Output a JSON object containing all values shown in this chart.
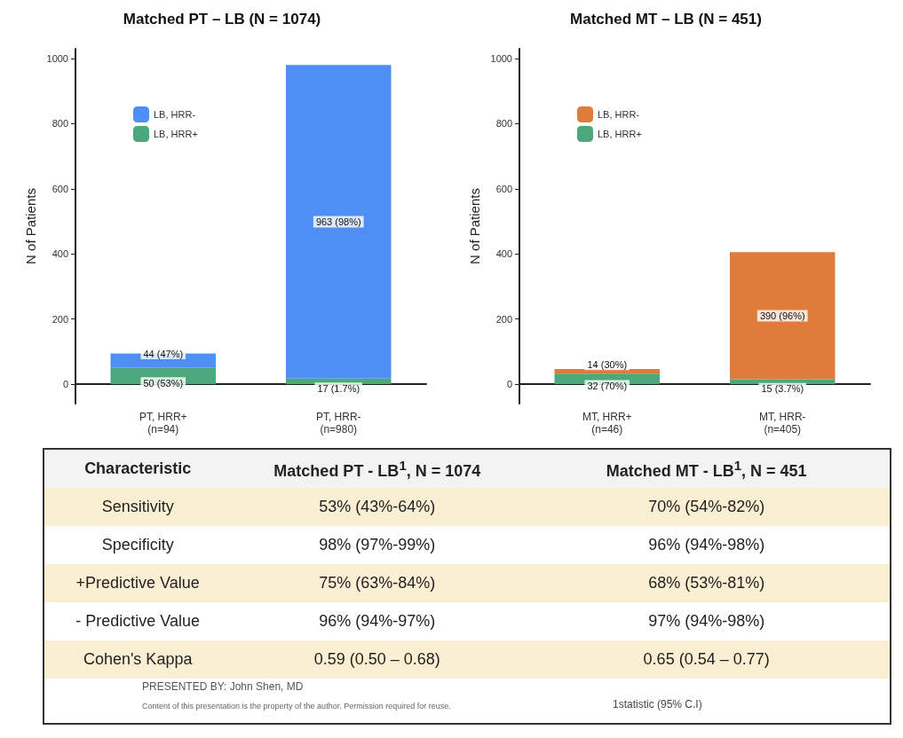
{
  "chart_data": [
    {
      "type": "bar",
      "title": "Matched PT – LB (N = 1074)",
      "ylabel": "N of Patients",
      "categories": [
        "PT, HRR+\n(n=94)",
        "PT, HRR-\n(n=980)"
      ],
      "stacked": true,
      "legend": "top left",
      "grid": false,
      "ylim": [
        -60,
        1030
      ],
      "yticks": [
        0,
        200,
        400,
        600,
        800,
        1000
      ],
      "series": [
        {
          "name": "LB, HRR+",
          "color": "#4aa87a",
          "values": [
            50,
            17
          ],
          "value_labels": [
            "50 (53%)",
            "17 (1.7%)"
          ]
        },
        {
          "name": "LB, HRR-",
          "color": "#4f8ef5",
          "values": [
            44,
            963
          ],
          "value_labels": [
            "44 (47%)",
            "963 (98%)"
          ]
        }
      ]
    },
    {
      "type": "bar",
      "title": "Matched MT – LB (N = 451)",
      "ylabel": "N of Patients",
      "categories": [
        "MT, HRR+\n(n=46)",
        "MT, HRR-\n(n=405)"
      ],
      "stacked": true,
      "legend": "top left",
      "grid": false,
      "ylim": [
        -60,
        1030
      ],
      "yticks": [
        0,
        200,
        400,
        600,
        800,
        1000
      ],
      "series": [
        {
          "name": "LB, HRR+",
          "color": "#4aa87a",
          "values": [
            32,
            15
          ],
          "value_labels": [
            "32 (70%)",
            "15 (3.7%)"
          ]
        },
        {
          "name": "LB, HRR-",
          "color": "#e07b3c",
          "values": [
            14,
            390
          ],
          "value_labels": [
            "14 (30%)",
            "390 (96%)"
          ]
        }
      ]
    },
    {
      "type": "other",
      "annotations": [
        "Characteristic",
        "Matched PT - LB$^{1}$, N = 1074",
        "Matched MT - LB$^{1}$, N = 451",
        "Sensitivity",
        "53% (43%-64%)",
        "70% (54%-82%)",
        "Specificity",
        "98% (97%-99%)",
        "96% (94%-98%)",
        "+Predictive Value",
        "75% (63%-84%)",
        "68% (53%-81%)",
        "- Predictive Value",
        "96% (94%-97%)",
        "97% (94%-98%)",
        "Cohen's Kappa",
        "0.59 (0.50 – 0.68)",
        "0.65 (0.54 – 0.77)",
        "PRESENTED BY: John Shen, MD",
        "Content of this presentation is the property of the author. Permission required for reuse.",
        "1statistic (95% C.I)"
      ]
    }
  ]
}
